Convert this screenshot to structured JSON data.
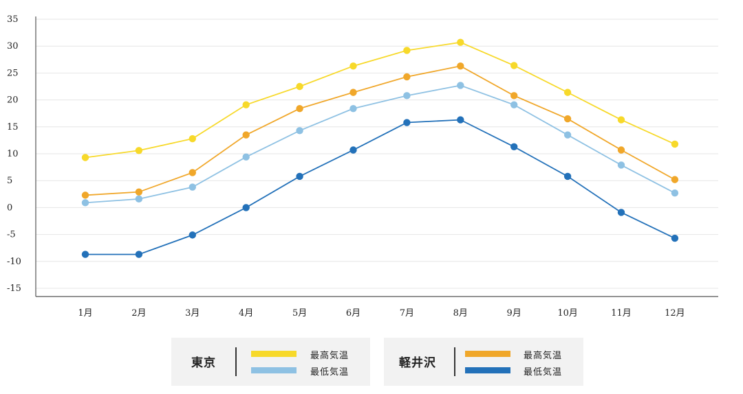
{
  "chart_data": {
    "type": "line",
    "categories": [
      "1月",
      "2月",
      "3月",
      "4月",
      "5月",
      "6月",
      "7月",
      "8月",
      "9月",
      "10月",
      "11月",
      "12月"
    ],
    "ylim": [
      -15,
      35
    ],
    "yticks": [
      -15,
      -10,
      -5,
      0,
      5,
      10,
      15,
      20,
      25,
      30,
      35
    ],
    "grid": true,
    "legend_position": "bottom",
    "series": [
      {
        "name": "最高気温",
        "group": "東京",
        "color": "#f7d92a",
        "values": [
          9.3,
          10.6,
          12.8,
          19.1,
          22.5,
          26.3,
          29.2,
          30.7,
          26.4,
          21.4,
          16.3,
          11.8
        ]
      },
      {
        "name": "最低気温",
        "group": "東京",
        "color": "#8ec1e3",
        "values": [
          0.9,
          1.6,
          3.8,
          9.4,
          14.3,
          18.4,
          20.8,
          22.7,
          19.1,
          13.5,
          7.9,
          2.7
        ]
      },
      {
        "name": "最高気温",
        "group": "軽井沢",
        "color": "#f0a72a",
        "values": [
          2.3,
          2.9,
          6.5,
          13.5,
          18.4,
          21.4,
          24.3,
          26.3,
          20.8,
          16.5,
          10.7,
          5.2
        ]
      },
      {
        "name": "最低気温",
        "group": "軽井沢",
        "color": "#2371b9",
        "values": [
          -8.7,
          -8.7,
          -5.1,
          0.0,
          5.8,
          10.7,
          15.8,
          16.3,
          11.3,
          5.8,
          -0.9,
          -5.7
        ]
      }
    ]
  },
  "legend": {
    "groups": [
      {
        "city": "東京",
        "items": [
          {
            "label": "最高気温",
            "color": "#f7d92a"
          },
          {
            "label": "最低気温",
            "color": "#8ec1e3"
          }
        ]
      },
      {
        "city": "軽井沢",
        "items": [
          {
            "label": "最高気温",
            "color": "#f0a72a"
          },
          {
            "label": "最低気温",
            "color": "#2371b9"
          }
        ]
      }
    ]
  }
}
